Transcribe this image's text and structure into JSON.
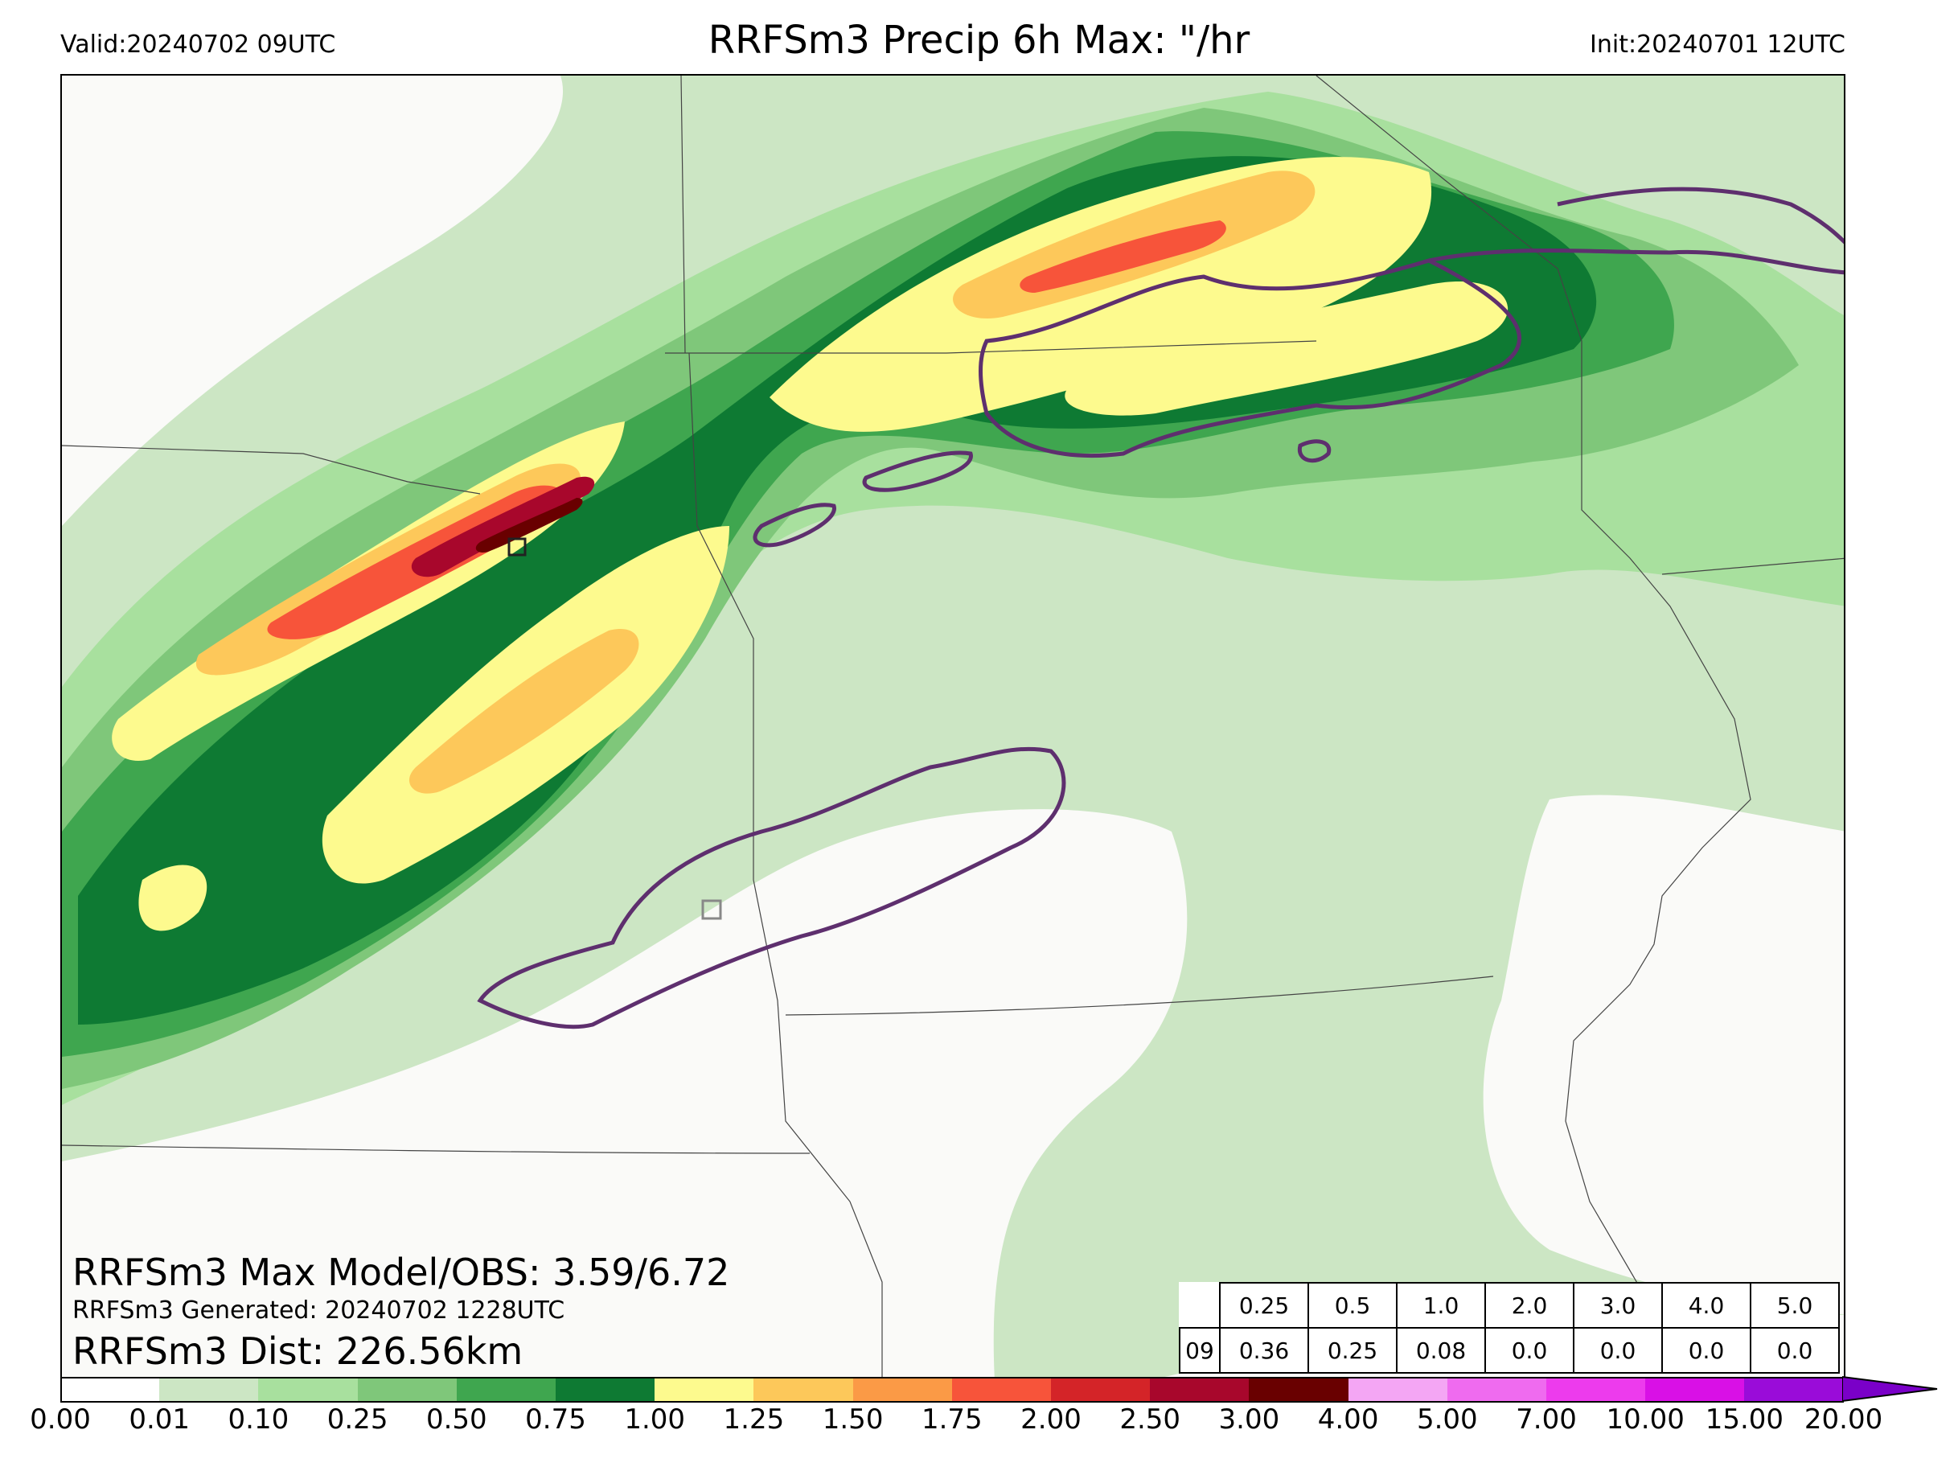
{
  "header": {
    "valid": "Valid:20240702 09UTC",
    "title": "RRFSm3 Precip 6h Max: \"/hr",
    "init": "Init:20240701 12UTC"
  },
  "stats": {
    "max_line": "RRFSm3 Max Model/OBS: 3.59/6.72",
    "generated_line": "RRFSm3 Generated: 20240702 1228UTC",
    "dist_line": "RRFSm3 Dist: 226.56km"
  },
  "score_table": {
    "thresholds": [
      "0.25",
      "0.5",
      "1.0",
      "2.0",
      "3.0",
      "4.0",
      "5.0"
    ],
    "row_label": "09",
    "values": [
      "0.36",
      "0.25",
      "0.08",
      "0.0",
      "0.0",
      "0.0",
      "0.0"
    ]
  },
  "colorbar": {
    "labels": [
      "0.00",
      "0.01",
      "0.10",
      "0.25",
      "0.50",
      "0.75",
      "1.00",
      "1.25",
      "1.50",
      "1.75",
      "2.00",
      "2.50",
      "3.00",
      "4.00",
      "5.00",
      "7.00",
      "10.00",
      "15.00",
      "20.00"
    ],
    "colors": [
      "#ffffff",
      "#cce6c4",
      "#a8e09e",
      "#7fc77a",
      "#3fa64f",
      "#0e7a33",
      "#fdfa8e",
      "#fdc85a",
      "#fb9a46",
      "#f7543a",
      "#d42428",
      "#a8072c",
      "#690000",
      "#f4a6f4",
      "#ef6bef",
      "#ed3bed",
      "#d910e6",
      "#9a0cd9"
    ],
    "extend_color": "#7a00c8"
  },
  "legend": {
    "map_colors": {
      "light": "#cce6c4",
      "mid": "#a8e09e",
      "medium": "#7fc77a",
      "strong": "#3fa64f",
      "heavy": "#0e7a33",
      "yellow": "#fdfa8e",
      "orange": "#fdc85a",
      "dorange": "#fb9a46",
      "red": "#f7543a",
      "dred": "#a8072c",
      "maroon": "#690000",
      "obs_contour": "#5e2f6e"
    }
  }
}
